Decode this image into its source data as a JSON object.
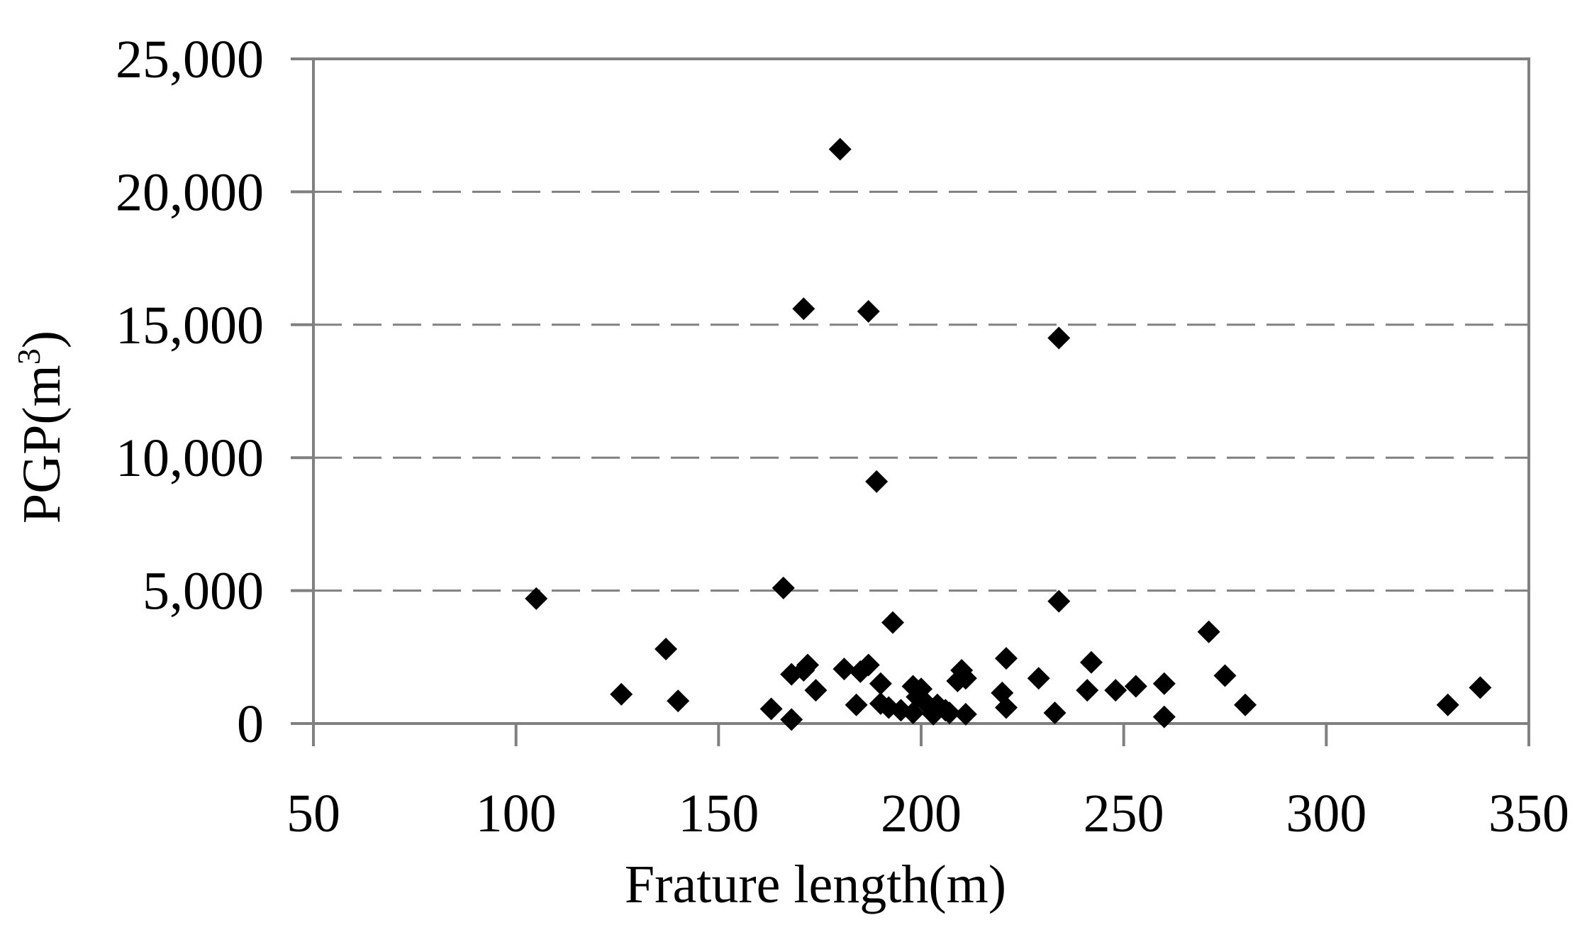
{
  "chart_data": {
    "type": "scatter",
    "title": "",
    "xlabel": "Frature length(m)",
    "ylabel_main": "PGP(m",
    "ylabel_sup": "3",
    "ylabel_close": ")",
    "xlim": [
      50,
      350
    ],
    "ylim": [
      0,
      25000
    ],
    "xticks": [
      50,
      100,
      150,
      200,
      250,
      300,
      350
    ],
    "yticks": [
      0,
      5000,
      10000,
      15000,
      20000,
      25000
    ],
    "xtick_labels": [
      "50",
      "100",
      "150",
      "200",
      "250",
      "300",
      "350"
    ],
    "ytick_labels": [
      "0",
      "5,000",
      "10,000",
      "15,000",
      "20,000",
      "25,000"
    ],
    "grid": "horizontal dashed",
    "legend": "none",
    "marker": "diamond",
    "colors": {
      "marker": "#000000",
      "axis": "#808080",
      "grid": "#808080"
    },
    "series": [
      {
        "points": [
          [
            105,
            4700
          ],
          [
            126,
            1100
          ],
          [
            137,
            2800
          ],
          [
            140,
            850
          ],
          [
            163,
            550
          ],
          [
            166,
            5100
          ],
          [
            168,
            1850
          ],
          [
            168,
            150
          ],
          [
            171,
            2000
          ],
          [
            171,
            15600
          ],
          [
            172,
            2200
          ],
          [
            174,
            1250
          ],
          [
            180,
            21600
          ],
          [
            181,
            2050
          ],
          [
            184,
            700
          ],
          [
            185,
            1950
          ],
          [
            187,
            15500
          ],
          [
            187,
            2200
          ],
          [
            189,
            9100
          ],
          [
            190,
            750
          ],
          [
            190,
            1500
          ],
          [
            192,
            600
          ],
          [
            193,
            3800
          ],
          [
            195,
            500
          ],
          [
            198,
            1400
          ],
          [
            198,
            400
          ],
          [
            199,
            1000
          ],
          [
            200,
            1300
          ],
          [
            201,
            800
          ],
          [
            203,
            350
          ],
          [
            204,
            700
          ],
          [
            206,
            500
          ],
          [
            207,
            400
          ],
          [
            209,
            1600
          ],
          [
            210,
            2000
          ],
          [
            211,
            1700
          ],
          [
            211,
            350
          ],
          [
            220,
            1150
          ],
          [
            221,
            2450
          ],
          [
            221,
            600
          ],
          [
            229,
            1700
          ],
          [
            233,
            400
          ],
          [
            234,
            4600
          ],
          [
            234,
            14500
          ],
          [
            241,
            1250
          ],
          [
            242,
            2300
          ],
          [
            248,
            1250
          ],
          [
            253,
            1400
          ],
          [
            260,
            1500
          ],
          [
            260,
            250
          ],
          [
            271,
            3450
          ],
          [
            275,
            1800
          ],
          [
            280,
            700
          ],
          [
            330,
            700
          ],
          [
            338,
            1350
          ]
        ]
      }
    ]
  }
}
